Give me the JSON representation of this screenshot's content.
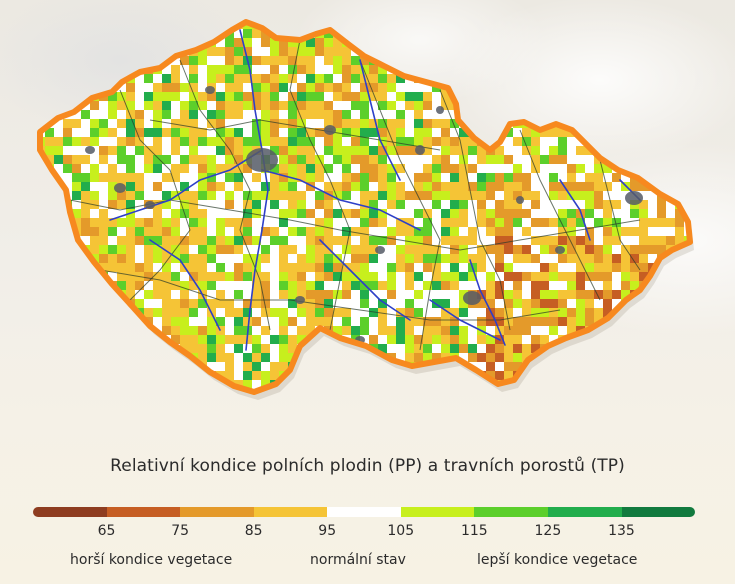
{
  "title": "Relativní kondice polních plodin (PP) a travních porostů (TP)",
  "legend": {
    "colors": [
      "#8e3d20",
      "#c65e23",
      "#e49a2a",
      "#f5c436",
      "#ffffff",
      "#c7ef1d",
      "#5ccf2b",
      "#22ad4c",
      "#117a3e"
    ],
    "ticks": [
      "65",
      "75",
      "85",
      "95",
      "105",
      "115",
      "125",
      "135"
    ],
    "captions": {
      "worse": "horší kondice vegetace",
      "normal": "normální stav",
      "better": "lepší kondice vegetace"
    }
  },
  "map": {
    "border_color": "#f7891f",
    "river_color": "#2e40c8",
    "region_line_color": "#2a3a2a",
    "city_color": "#555a66"
  }
}
